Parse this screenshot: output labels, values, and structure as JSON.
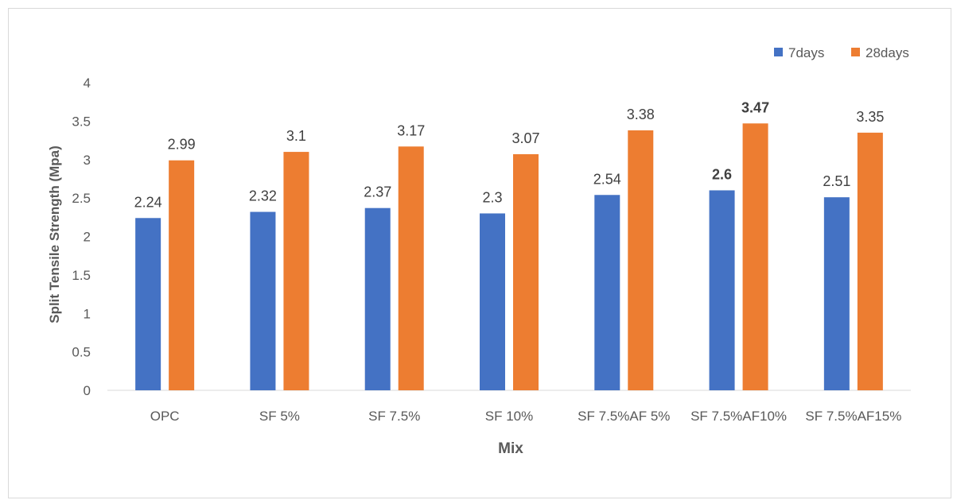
{
  "chart_data": {
    "type": "bar",
    "title": "",
    "xlabel": "Mix",
    "ylabel": "Split Tensile Strength (Mpa)",
    "ylim": [
      0,
      4
    ],
    "yticks": [
      "0",
      "0.5",
      "1",
      "1.5",
      "2",
      "2.5",
      "3",
      "3.5",
      "4"
    ],
    "grid": false,
    "legend_position": "top-right",
    "categories": [
      "OPC",
      "SF 5%",
      "SF 7.5%",
      "SF 10%",
      "SF 7.5%AF 5%",
      "SF 7.5%AF10%",
      "SF 7.5%AF15%"
    ],
    "series": [
      {
        "name": "7days",
        "color": "#4472c4",
        "values": [
          2.24,
          2.32,
          2.37,
          2.3,
          2.54,
          2.6,
          2.51
        ],
        "labels": [
          "2.24",
          "2.32",
          "2.37",
          "2.3",
          "2.54",
          "2.6",
          "2.51"
        ]
      },
      {
        "name": "28days",
        "color": "#ed7d31",
        "values": [
          2.99,
          3.1,
          3.17,
          3.07,
          3.38,
          3.47,
          3.35
        ],
        "labels": [
          "2.99",
          "3.1",
          "3.17",
          "3.07",
          "3.38",
          "3.47",
          "3.35"
        ]
      }
    ],
    "bold_category_index": 5
  }
}
